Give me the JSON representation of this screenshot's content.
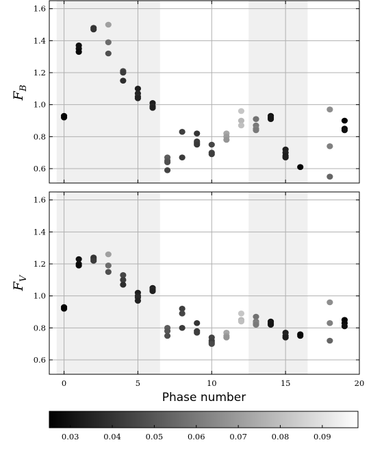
{
  "chart_data": [
    {
      "type": "scatter",
      "panel": "top",
      "ylabel_main": "F",
      "ylabel_sub": "B",
      "xlabel": "",
      "xlim": [
        -1,
        20
      ],
      "ylim": [
        0.51,
        1.65
      ],
      "xticks": [
        0,
        5,
        10,
        15,
        20
      ],
      "show_xtick_labels": false,
      "yticks": [
        0.6,
        0.8,
        1.0,
        1.2,
        1.4,
        1.6
      ],
      "ytick_labels": [
        "0.6",
        "0.8",
        "1.0",
        "1.2",
        "1.4",
        "1.6"
      ],
      "grid": true,
      "shaded_x_ranges": [
        [
          -0.5,
          6.5
        ],
        [
          12.5,
          16.5
        ]
      ],
      "color_scale": "gray",
      "points": [
        {
          "x": 0,
          "y": 0.93,
          "c": 0.026
        },
        {
          "x": 0,
          "y": 0.92,
          "c": 0.026
        },
        {
          "x": 1,
          "y": 1.37,
          "c": 0.03
        },
        {
          "x": 1,
          "y": 1.35,
          "c": 0.03
        },
        {
          "x": 1,
          "y": 1.33,
          "c": 0.028
        },
        {
          "x": 2,
          "y": 1.48,
          "c": 0.04
        },
        {
          "x": 2,
          "y": 1.47,
          "c": 0.04
        },
        {
          "x": 3,
          "y": 1.5,
          "c": 0.071
        },
        {
          "x": 3,
          "y": 1.39,
          "c": 0.056
        },
        {
          "x": 3,
          "y": 1.32,
          "c": 0.048
        },
        {
          "x": 4,
          "y": 1.21,
          "c": 0.045
        },
        {
          "x": 4,
          "y": 1.2,
          "c": 0.042
        },
        {
          "x": 4,
          "y": 1.15,
          "c": 0.038
        },
        {
          "x": 5,
          "y": 1.1,
          "c": 0.034
        },
        {
          "x": 5,
          "y": 1.07,
          "c": 0.036
        },
        {
          "x": 5,
          "y": 1.05,
          "c": 0.037
        },
        {
          "x": 5,
          "y": 1.04,
          "c": 0.035
        },
        {
          "x": 6,
          "y": 1.01,
          "c": 0.033
        },
        {
          "x": 6,
          "y": 0.99,
          "c": 0.036
        },
        {
          "x": 6,
          "y": 0.98,
          "c": 0.034
        },
        {
          "x": 7,
          "y": 0.67,
          "c": 0.052
        },
        {
          "x": 7,
          "y": 0.65,
          "c": 0.05
        },
        {
          "x": 7,
          "y": 0.64,
          "c": 0.048
        },
        {
          "x": 7,
          "y": 0.59,
          "c": 0.045
        },
        {
          "x": 8,
          "y": 0.83,
          "c": 0.043
        },
        {
          "x": 8,
          "y": 0.67,
          "c": 0.042
        },
        {
          "x": 9,
          "y": 0.82,
          "c": 0.04
        },
        {
          "x": 9,
          "y": 0.77,
          "c": 0.042
        },
        {
          "x": 9,
          "y": 0.76,
          "c": 0.043
        },
        {
          "x": 9,
          "y": 0.75,
          "c": 0.041
        },
        {
          "x": 10,
          "y": 0.75,
          "c": 0.045
        },
        {
          "x": 10,
          "y": 0.7,
          "c": 0.044
        },
        {
          "x": 10,
          "y": 0.69,
          "c": 0.043
        },
        {
          "x": 11,
          "y": 0.82,
          "c": 0.073
        },
        {
          "x": 11,
          "y": 0.8,
          "c": 0.07
        },
        {
          "x": 11,
          "y": 0.78,
          "c": 0.068
        },
        {
          "x": 12,
          "y": 0.96,
          "c": 0.082
        },
        {
          "x": 12,
          "y": 0.9,
          "c": 0.078
        },
        {
          "x": 12,
          "y": 0.87,
          "c": 0.08
        },
        {
          "x": 13,
          "y": 0.91,
          "c": 0.058
        },
        {
          "x": 13,
          "y": 0.87,
          "c": 0.06
        },
        {
          "x": 13,
          "y": 0.85,
          "c": 0.062
        },
        {
          "x": 13,
          "y": 0.84,
          "c": 0.06
        },
        {
          "x": 14,
          "y": 0.93,
          "c": 0.03
        },
        {
          "x": 14,
          "y": 0.92,
          "c": 0.032
        },
        {
          "x": 14,
          "y": 0.91,
          "c": 0.031
        },
        {
          "x": 15,
          "y": 0.72,
          "c": 0.034
        },
        {
          "x": 15,
          "y": 0.7,
          "c": 0.035
        },
        {
          "x": 15,
          "y": 0.68,
          "c": 0.033
        },
        {
          "x": 15,
          "y": 0.67,
          "c": 0.034
        },
        {
          "x": 16,
          "y": 0.61,
          "c": 0.026
        },
        {
          "x": 18,
          "y": 0.97,
          "c": 0.066
        },
        {
          "x": 18,
          "y": 0.74,
          "c": 0.062
        },
        {
          "x": 18,
          "y": 0.55,
          "c": 0.054
        },
        {
          "x": 19,
          "y": 0.9,
          "c": 0.026
        },
        {
          "x": 19,
          "y": 0.85,
          "c": 0.028
        },
        {
          "x": 19,
          "y": 0.84,
          "c": 0.03
        }
      ]
    },
    {
      "type": "scatter",
      "panel": "bottom",
      "ylabel_main": "F",
      "ylabel_sub": "V",
      "xlabel": "Phase number",
      "xlim": [
        -1,
        20
      ],
      "ylim": [
        0.51,
        1.65
      ],
      "xticks": [
        0,
        5,
        10,
        15,
        20
      ],
      "xtick_labels": [
        "0",
        "5",
        "10",
        "15",
        "20"
      ],
      "show_xtick_labels": true,
      "yticks": [
        0.6,
        0.8,
        1.0,
        1.2,
        1.4,
        1.6
      ],
      "ytick_labels": [
        "0.6",
        "0.8",
        "1.0",
        "1.2",
        "1.4",
        "1.6"
      ],
      "grid": true,
      "shaded_x_ranges": [
        [
          -0.5,
          6.5
        ],
        [
          12.5,
          16.5
        ]
      ],
      "color_scale": "gray",
      "points": [
        {
          "x": 0,
          "y": 0.93,
          "c": 0.026
        },
        {
          "x": 0,
          "y": 0.92,
          "c": 0.026
        },
        {
          "x": 1,
          "y": 1.23,
          "c": 0.03
        },
        {
          "x": 1,
          "y": 1.2,
          "c": 0.03
        },
        {
          "x": 1,
          "y": 1.19,
          "c": 0.028
        },
        {
          "x": 2,
          "y": 1.24,
          "c": 0.04
        },
        {
          "x": 2,
          "y": 1.23,
          "c": 0.04
        },
        {
          "x": 2,
          "y": 1.22,
          "c": 0.042
        },
        {
          "x": 3,
          "y": 1.26,
          "c": 0.071
        },
        {
          "x": 3,
          "y": 1.19,
          "c": 0.056
        },
        {
          "x": 3,
          "y": 1.15,
          "c": 0.048
        },
        {
          "x": 4,
          "y": 1.13,
          "c": 0.045
        },
        {
          "x": 4,
          "y": 1.1,
          "c": 0.042
        },
        {
          "x": 4,
          "y": 1.07,
          "c": 0.038
        },
        {
          "x": 5,
          "y": 1.02,
          "c": 0.034
        },
        {
          "x": 5,
          "y": 1.0,
          "c": 0.036
        },
        {
          "x": 5,
          "y": 0.99,
          "c": 0.037
        },
        {
          "x": 5,
          "y": 0.97,
          "c": 0.035
        },
        {
          "x": 6,
          "y": 1.05,
          "c": 0.033
        },
        {
          "x": 6,
          "y": 1.04,
          "c": 0.036
        },
        {
          "x": 6,
          "y": 1.03,
          "c": 0.034
        },
        {
          "x": 7,
          "y": 0.8,
          "c": 0.052
        },
        {
          "x": 7,
          "y": 0.78,
          "c": 0.05
        },
        {
          "x": 7,
          "y": 0.75,
          "c": 0.048
        },
        {
          "x": 8,
          "y": 0.92,
          "c": 0.043
        },
        {
          "x": 8,
          "y": 0.89,
          "c": 0.045
        },
        {
          "x": 8,
          "y": 0.8,
          "c": 0.042
        },
        {
          "x": 9,
          "y": 0.83,
          "c": 0.04
        },
        {
          "x": 9,
          "y": 0.78,
          "c": 0.042
        },
        {
          "x": 9,
          "y": 0.77,
          "c": 0.043
        },
        {
          "x": 10,
          "y": 0.74,
          "c": 0.045
        },
        {
          "x": 10,
          "y": 0.72,
          "c": 0.044
        },
        {
          "x": 10,
          "y": 0.71,
          "c": 0.043
        },
        {
          "x": 10,
          "y": 0.7,
          "c": 0.046
        },
        {
          "x": 11,
          "y": 0.77,
          "c": 0.073
        },
        {
          "x": 11,
          "y": 0.75,
          "c": 0.07
        },
        {
          "x": 11,
          "y": 0.74,
          "c": 0.068
        },
        {
          "x": 12,
          "y": 0.89,
          "c": 0.082
        },
        {
          "x": 12,
          "y": 0.85,
          "c": 0.078
        },
        {
          "x": 12,
          "y": 0.84,
          "c": 0.08
        },
        {
          "x": 13,
          "y": 0.87,
          "c": 0.058
        },
        {
          "x": 13,
          "y": 0.84,
          "c": 0.06
        },
        {
          "x": 13,
          "y": 0.83,
          "c": 0.062
        },
        {
          "x": 13,
          "y": 0.82,
          "c": 0.06
        },
        {
          "x": 14,
          "y": 0.84,
          "c": 0.03
        },
        {
          "x": 14,
          "y": 0.83,
          "c": 0.032
        },
        {
          "x": 14,
          "y": 0.82,
          "c": 0.031
        },
        {
          "x": 15,
          "y": 0.77,
          "c": 0.034
        },
        {
          "x": 15,
          "y": 0.75,
          "c": 0.035
        },
        {
          "x": 15,
          "y": 0.74,
          "c": 0.033
        },
        {
          "x": 16,
          "y": 0.76,
          "c": 0.026
        },
        {
          "x": 16,
          "y": 0.75,
          "c": 0.027
        },
        {
          "x": 18,
          "y": 0.96,
          "c": 0.066
        },
        {
          "x": 18,
          "y": 0.83,
          "c": 0.062
        },
        {
          "x": 18,
          "y": 0.72,
          "c": 0.054
        },
        {
          "x": 19,
          "y": 0.85,
          "c": 0.026
        },
        {
          "x": 19,
          "y": 0.83,
          "c": 0.028
        },
        {
          "x": 19,
          "y": 0.81,
          "c": 0.03
        }
      ]
    }
  ],
  "colorbar": {
    "min": 0.025,
    "max": 0.0985,
    "ticks": [
      0.03,
      0.04,
      0.05,
      0.06,
      0.07,
      0.08,
      0.09
    ],
    "tick_labels": [
      "0.03",
      "0.04",
      "0.05",
      "0.06",
      "0.07",
      "0.08",
      "0.09"
    ],
    "color_start": "#000000",
    "color_end": "#ffffff"
  }
}
